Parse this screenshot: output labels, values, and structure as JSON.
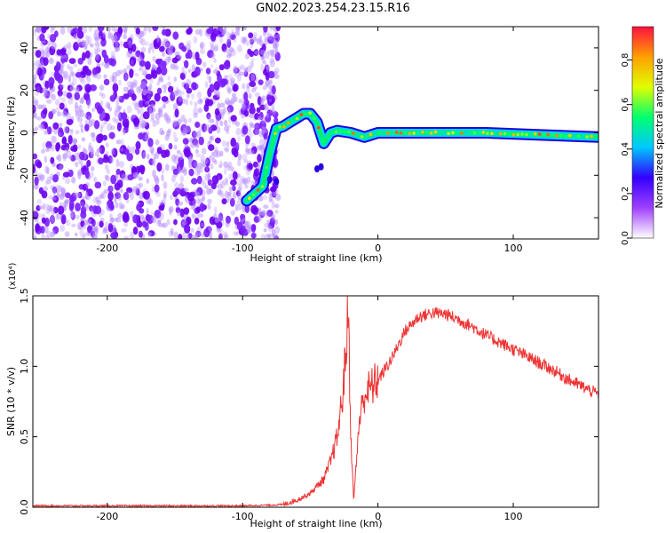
{
  "title": "GN02.2023.254.23.15.R16",
  "colors": {
    "snr_line": "#ee3333",
    "colorbar": [
      "#ffffff",
      "#a040ff",
      "#3300ff",
      "#00c8ff",
      "#00ff70",
      "#e0ff00",
      "#ffa000",
      "#ff1040"
    ]
  },
  "chart_data": [
    {
      "type": "heatmap",
      "xlabel": "Height of straight line (km)",
      "ylabel": "Frequency (Hz)",
      "xlim": [
        -255,
        163
      ],
      "ylim": [
        -50,
        50
      ],
      "xticks": [
        -200,
        -100,
        0,
        100
      ],
      "xtick_labels": [
        "-200",
        "-100",
        "0",
        "100"
      ],
      "yticks": [
        40,
        20,
        0,
        -20,
        -40
      ],
      "ytick_labels": [
        "40",
        "20",
        "0",
        "-20",
        "-40"
      ],
      "colorbar": {
        "label": "Normalized spectral amplitude",
        "range": [
          0.0,
          0.95
        ],
        "ticks": [
          0.0,
          0.2,
          0.4,
          0.6,
          0.8
        ],
        "tick_labels": [
          "0.0",
          "0.2",
          "0.4",
          "0.6",
          "0.8"
        ]
      },
      "features": {
        "noise_region_x": [
          -255,
          -88
        ],
        "trace": [
          {
            "x": -97,
            "y": -32
          },
          {
            "x": -90,
            "y": -28
          },
          {
            "x": -85,
            "y": -25
          },
          {
            "x": -80,
            "y": -10
          },
          {
            "x": -75,
            "y": 2
          },
          {
            "x": -70,
            "y": 3
          },
          {
            "x": -65,
            "y": 5
          },
          {
            "x": -60,
            "y": 7
          },
          {
            "x": -55,
            "y": 9
          },
          {
            "x": -50,
            "y": 9
          },
          {
            "x": -45,
            "y": 5
          },
          {
            "x": -40,
            "y": -5
          },
          {
            "x": -35,
            "y": 0
          },
          {
            "x": -30,
            "y": 1
          },
          {
            "x": -20,
            "y": 0
          },
          {
            "x": -10,
            "y": -2
          },
          {
            "x": 0,
            "y": 0
          },
          {
            "x": 40,
            "y": 0
          },
          {
            "x": 80,
            "y": 0
          },
          {
            "x": 120,
            "y": -1
          },
          {
            "x": 163,
            "y": -2
          }
        ]
      }
    },
    {
      "type": "line",
      "xlabel": "Height of straight line (km)",
      "ylabel": "SNR (10 * v/v)",
      "y_scale_label": "(x10⁴)",
      "xlim": [
        -255,
        163
      ],
      "ylim": [
        0.0,
        1.5
      ],
      "xticks": [
        -200,
        -100,
        0,
        100
      ],
      "xtick_labels": [
        "-200",
        "-100",
        "0",
        "100"
      ],
      "yticks": [
        0.0,
        0.5,
        1.0,
        1.5
      ],
      "ytick_labels": [
        "0.0",
        "0.5",
        "1.0",
        "1.5"
      ],
      "series": [
        {
          "points": [
            [
              -255,
              0.01
            ],
            [
              -200,
              0.01
            ],
            [
              -150,
              0.01
            ],
            [
              -100,
              0.01
            ],
            [
              -80,
              0.015
            ],
            [
              -70,
              0.02
            ],
            [
              -60,
              0.05
            ],
            [
              -50,
              0.1
            ],
            [
              -40,
              0.2
            ],
            [
              -35,
              0.32
            ],
            [
              -30,
              0.5
            ],
            [
              -26,
              0.8
            ],
            [
              -23,
              1.2
            ],
            [
              -22,
              1.45
            ],
            [
              -20,
              0.5
            ],
            [
              -18,
              0.05
            ],
            [
              -16,
              0.3
            ],
            [
              -14,
              0.6
            ],
            [
              -10,
              0.8
            ],
            [
              -5,
              0.85
            ],
            [
              0,
              0.9
            ],
            [
              10,
              1.05
            ],
            [
              20,
              1.25
            ],
            [
              30,
              1.35
            ],
            [
              40,
              1.38
            ],
            [
              50,
              1.37
            ],
            [
              60,
              1.33
            ],
            [
              70,
              1.28
            ],
            [
              80,
              1.22
            ],
            [
              90,
              1.17
            ],
            [
              100,
              1.12
            ],
            [
              110,
              1.07
            ],
            [
              120,
              1.02
            ],
            [
              130,
              0.97
            ],
            [
              140,
              0.91
            ],
            [
              150,
              0.86
            ],
            [
              163,
              0.8
            ]
          ]
        }
      ]
    }
  ]
}
